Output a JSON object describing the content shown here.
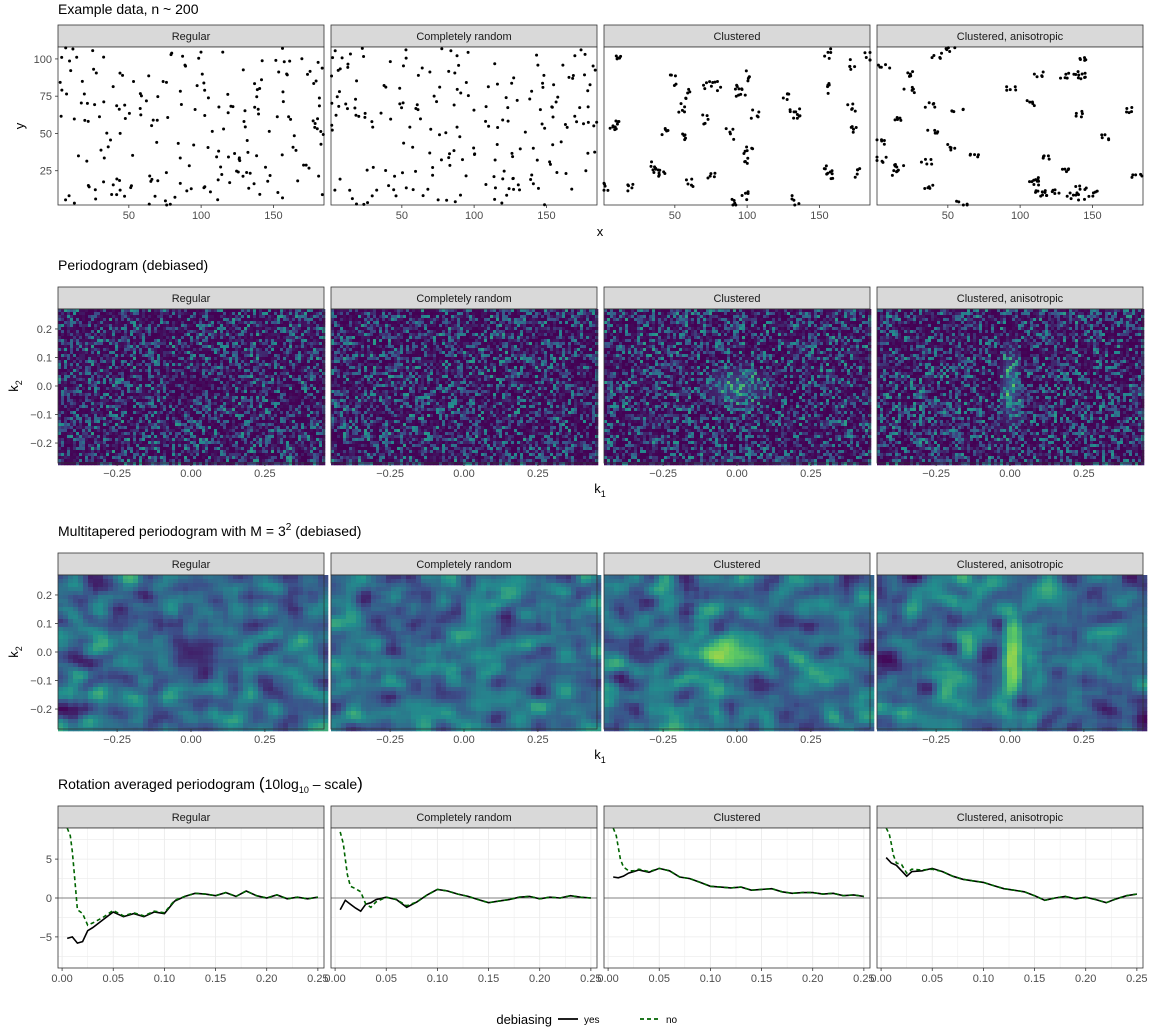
{
  "figure": {
    "facet_labels": [
      "Regular",
      "Completely random",
      "Clustered",
      "Clustered, anisotropic"
    ],
    "legend": {
      "title": "debiasing",
      "entries": [
        {
          "label": "yes",
          "color": "#000000",
          "dash": "solid"
        },
        {
          "label": "no",
          "color": "#006400",
          "dash": "dashed"
        }
      ]
    }
  },
  "chart_data": [
    {
      "type": "scatter",
      "title": "Example data, n ~ 200",
      "xlabel": "x",
      "ylabel": "y",
      "xlim": [
        1,
        185
      ],
      "ylim": [
        2,
        108
      ],
      "xticks": [
        50,
        100,
        150
      ],
      "yticks": [
        25,
        50,
        75,
        100
      ],
      "point_color": "#000000",
      "panels": [
        {
          "name": "Regular",
          "n_points": 200,
          "pattern": "regular"
        },
        {
          "name": "Completely random",
          "n_points": 200,
          "pattern": "random"
        },
        {
          "name": "Clustered",
          "n_points": 200,
          "pattern": "clustered"
        },
        {
          "name": "Clustered, anisotropic",
          "n_points": 200,
          "pattern": "clustered-anisotropic"
        }
      ]
    },
    {
      "type": "heatmap",
      "title": "Periodogram (debiased)",
      "xlabel": "k",
      "xlabel_sub": "1",
      "ylabel": "k",
      "ylabel_sub": "2",
      "xlim": [
        -0.45,
        0.45
      ],
      "ylim": [
        -0.27,
        0.27
      ],
      "xticks": [
        -0.25,
        0.0,
        0.25
      ],
      "xticklabels": [
        "−0.25",
        "0.00",
        "0.25"
      ],
      "yticks": [
        0.2,
        0.1,
        0.0,
        -0.1,
        -0.2
      ],
      "yticklabels": [
        "0.2",
        "0.1",
        "0.0",
        "−0.1",
        "−0.2"
      ],
      "colormap": [
        "#440154",
        "#3b528b",
        "#21908d",
        "#5dc963",
        "#fde725"
      ],
      "panels": [
        {
          "name": "Regular",
          "structure": "central-dip"
        },
        {
          "name": "Completely random",
          "structure": "flat"
        },
        {
          "name": "Clustered",
          "structure": "central-peak"
        },
        {
          "name": "Clustered, anisotropic",
          "structure": "vertical-ridge"
        }
      ]
    },
    {
      "type": "heatmap",
      "title_prefix": "Multitapered periodogram with M",
      "title_eq": "= 3",
      "title_sup": "2",
      "title_suffix": "(debiased)",
      "xlabel": "k",
      "xlabel_sub": "1",
      "ylabel": "k",
      "ylabel_sub": "2",
      "xlim": [
        -0.45,
        0.45
      ],
      "ylim": [
        -0.27,
        0.27
      ],
      "xticks": [
        -0.25,
        0.0,
        0.25
      ],
      "xticklabels": [
        "−0.25",
        "0.00",
        "0.25"
      ],
      "yticks": [
        0.2,
        0.1,
        0.0,
        -0.1,
        -0.2
      ],
      "yticklabels": [
        "0.2",
        "0.1",
        "0.0",
        "−0.1",
        "−0.2"
      ],
      "colormap": [
        "#440154",
        "#3b528b",
        "#21908d",
        "#5dc963",
        "#fde725"
      ],
      "panels": [
        {
          "name": "Regular",
          "structure": "central-dip"
        },
        {
          "name": "Completely random",
          "structure": "flat"
        },
        {
          "name": "Clustered",
          "structure": "central-peak"
        },
        {
          "name": "Clustered, anisotropic",
          "structure": "vertical-ridge"
        }
      ]
    },
    {
      "type": "line",
      "title_prefix": "Rotation averaged periodogram",
      "title_paren_open": "(",
      "title_main": "10log",
      "title_sub": "10",
      "title_rest": " – scale",
      "title_paren_close": ")",
      "xlim": [
        -0.004,
        0.256
      ],
      "ylim": [
        -9,
        9
      ],
      "xticks": [
        0.0,
        0.05,
        0.1,
        0.15,
        0.2,
        0.25
      ],
      "xticklabels": [
        "0.00",
        "0.05",
        "0.10",
        "0.15",
        "0.20",
        "0.25"
      ],
      "yticks": [
        5,
        0,
        -5
      ],
      "yticklabels": [
        "5",
        "0",
        "−5"
      ],
      "hline": 0,
      "panels": [
        {
          "name": "Regular",
          "series": [
            {
              "name": "yes",
              "x": [
                0.005,
                0.01,
                0.015,
                0.02,
                0.025,
                0.03,
                0.04,
                0.05,
                0.06,
                0.07,
                0.08,
                0.09,
                0.1,
                0.11,
                0.12,
                0.13,
                0.14,
                0.15,
                0.16,
                0.17,
                0.18,
                0.19,
                0.2,
                0.21,
                0.22,
                0.23,
                0.24,
                0.25
              ],
              "y": [
                -5.2,
                -5.0,
                -5.8,
                -5.6,
                -4.2,
                -3.8,
                -2.8,
                -1.8,
                -2.4,
                -2.0,
                -2.4,
                -1.8,
                -2.0,
                -0.4,
                0.2,
                0.6,
                0.5,
                0.3,
                0.7,
                0.2,
                0.9,
                0.3,
                0.0,
                0.4,
                -0.1,
                0.1,
                -0.1,
                0.1
              ]
            },
            {
              "name": "no",
              "x": [
                0.005,
                0.008,
                0.01,
                0.012,
                0.015,
                0.02,
                0.025,
                0.03,
                0.04,
                0.05,
                0.06,
                0.07,
                0.08,
                0.09,
                0.1,
                0.11,
                0.12,
                0.13,
                0.14,
                0.15,
                0.16,
                0.17,
                0.18,
                0.19,
                0.2,
                0.21,
                0.22,
                0.23,
                0.24,
                0.25
              ],
              "y": [
                9.0,
                8.0,
                6.0,
                3.0,
                -1.5,
                -2.0,
                -3.5,
                -3.2,
                -2.5,
                -1.6,
                -2.3,
                -1.9,
                -2.3,
                -1.7,
                -1.9,
                -0.3,
                0.2,
                0.6,
                0.5,
                0.3,
                0.7,
                0.2,
                0.9,
                0.3,
                0.0,
                0.4,
                -0.1,
                0.1,
                -0.1,
                0.1
              ]
            }
          ]
        },
        {
          "name": "Completely random",
          "series": [
            {
              "name": "yes",
              "x": [
                0.005,
                0.01,
                0.015,
                0.02,
                0.025,
                0.03,
                0.035,
                0.04,
                0.05,
                0.06,
                0.07,
                0.08,
                0.09,
                0.1,
                0.11,
                0.12,
                0.13,
                0.14,
                0.15,
                0.16,
                0.17,
                0.18,
                0.19,
                0.2,
                0.21,
                0.22,
                0.23,
                0.24,
                0.25
              ],
              "y": [
                -1.5,
                -0.3,
                -0.8,
                -1.3,
                -1.7,
                -0.8,
                -0.6,
                -0.2,
                0.1,
                -0.2,
                -1.2,
                -0.5,
                0.4,
                1.1,
                0.9,
                0.5,
                0.2,
                -0.2,
                -0.6,
                -0.4,
                -0.2,
                0.1,
                0.2,
                -0.1,
                0.1,
                0.0,
                0.3,
                0.1,
                0.0
              ]
            },
            {
              "name": "no",
              "x": [
                0.005,
                0.008,
                0.01,
                0.012,
                0.015,
                0.02,
                0.025,
                0.03,
                0.035,
                0.04,
                0.05,
                0.06,
                0.07,
                0.08,
                0.09,
                0.1,
                0.11,
                0.12,
                0.13,
                0.14,
                0.15,
                0.16,
                0.17,
                0.18,
                0.19,
                0.2,
                0.21,
                0.22,
                0.23,
                0.24,
                0.25
              ],
              "y": [
                8.5,
                7.0,
                5.0,
                3.0,
                1.5,
                1.2,
                0.8,
                -0.8,
                -1.2,
                -0.5,
                0.1,
                -0.2,
                -1.0,
                -0.5,
                0.4,
                1.1,
                0.9,
                0.5,
                0.2,
                -0.2,
                -0.6,
                -0.4,
                -0.2,
                0.1,
                0.2,
                -0.1,
                0.1,
                0.0,
                0.3,
                0.1,
                0.0
              ]
            }
          ]
        },
        {
          "name": "Clustered",
          "series": [
            {
              "name": "yes",
              "x": [
                0.005,
                0.01,
                0.015,
                0.02,
                0.025,
                0.03,
                0.04,
                0.05,
                0.06,
                0.07,
                0.08,
                0.09,
                0.1,
                0.11,
                0.12,
                0.13,
                0.14,
                0.15,
                0.16,
                0.17,
                0.18,
                0.19,
                0.2,
                0.21,
                0.22,
                0.23,
                0.24,
                0.25
              ],
              "y": [
                2.7,
                2.6,
                2.8,
                3.2,
                3.4,
                3.6,
                3.3,
                3.8,
                3.5,
                2.7,
                2.5,
                2.0,
                1.5,
                1.4,
                1.3,
                1.4,
                1.0,
                1.1,
                1.2,
                0.8,
                0.6,
                0.7,
                0.7,
                0.5,
                0.6,
                0.3,
                0.4,
                0.2
              ]
            },
            {
              "name": "no",
              "x": [
                0.005,
                0.008,
                0.01,
                0.012,
                0.015,
                0.02,
                0.025,
                0.03,
                0.04,
                0.05,
                0.06,
                0.07,
                0.08,
                0.09,
                0.1,
                0.11,
                0.12,
                0.13,
                0.14,
                0.15,
                0.16,
                0.17,
                0.18,
                0.19,
                0.2,
                0.21,
                0.22,
                0.23,
                0.24,
                0.25
              ],
              "y": [
                9.0,
                8.0,
                6.5,
                5.0,
                4.0,
                3.5,
                3.5,
                3.7,
                3.4,
                3.8,
                3.5,
                2.7,
                2.5,
                2.0,
                1.5,
                1.4,
                1.3,
                1.4,
                1.0,
                1.1,
                1.2,
                0.8,
                0.6,
                0.7,
                0.7,
                0.5,
                0.6,
                0.3,
                0.4,
                0.2
              ]
            }
          ]
        },
        {
          "name": "Clustered, anisotropic",
          "series": [
            {
              "name": "yes",
              "x": [
                0.005,
                0.01,
                0.015,
                0.02,
                0.025,
                0.03,
                0.04,
                0.05,
                0.06,
                0.07,
                0.08,
                0.09,
                0.1,
                0.11,
                0.12,
                0.13,
                0.14,
                0.15,
                0.16,
                0.17,
                0.18,
                0.19,
                0.2,
                0.21,
                0.22,
                0.23,
                0.24,
                0.25
              ],
              "y": [
                5.2,
                4.5,
                4.2,
                3.5,
                2.8,
                3.4,
                3.5,
                3.8,
                3.4,
                2.8,
                2.4,
                2.2,
                2.0,
                1.6,
                1.2,
                1.0,
                0.8,
                0.3,
                -0.3,
                0.0,
                0.2,
                -0.1,
                0.1,
                -0.2,
                -0.6,
                -0.1,
                0.3,
                0.5
              ]
            },
            {
              "name": "no",
              "x": [
                0.005,
                0.008,
                0.01,
                0.012,
                0.015,
                0.02,
                0.025,
                0.03,
                0.04,
                0.05,
                0.06,
                0.07,
                0.08,
                0.09,
                0.1,
                0.11,
                0.12,
                0.13,
                0.14,
                0.15,
                0.16,
                0.17,
                0.18,
                0.19,
                0.2,
                0.21,
                0.22,
                0.23,
                0.24,
                0.25
              ],
              "y": [
                9.0,
                8.2,
                7.0,
                5.5,
                4.5,
                4.3,
                3.2,
                3.7,
                3.6,
                3.7,
                3.4,
                2.8,
                2.4,
                2.2,
                2.0,
                1.6,
                1.2,
                1.0,
                0.8,
                0.3,
                -0.3,
                0.0,
                0.2,
                -0.1,
                0.1,
                -0.2,
                -0.6,
                -0.1,
                0.3,
                0.5
              ]
            }
          ]
        }
      ]
    }
  ]
}
